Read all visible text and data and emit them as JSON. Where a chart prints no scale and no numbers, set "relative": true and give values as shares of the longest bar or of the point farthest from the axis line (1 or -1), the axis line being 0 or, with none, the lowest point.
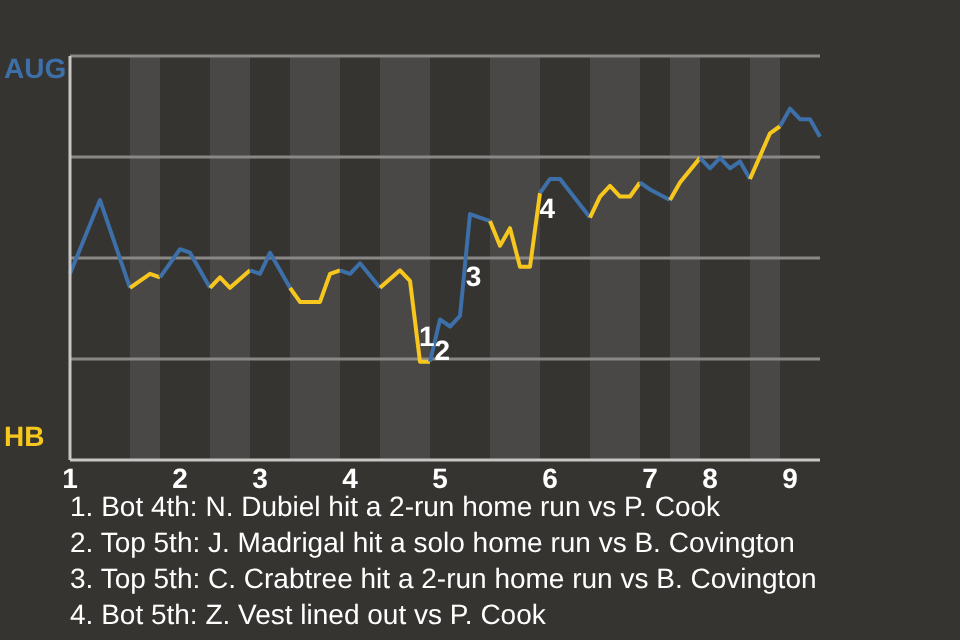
{
  "chart_data": {
    "type": "line",
    "relative": true,
    "categories": [
      "1",
      null,
      null,
      null,
      null,
      null,
      null,
      null,
      null,
      null,
      null,
      "2",
      null,
      null,
      null,
      null,
      null,
      null,
      null,
      "3",
      null,
      null,
      null,
      null,
      null,
      null,
      null,
      null,
      "4",
      null,
      null,
      null,
      null,
      null,
      null,
      null,
      null,
      "5",
      null,
      null,
      null,
      null,
      null,
      null,
      null,
      null,
      null,
      null,
      "6",
      null,
      null,
      null,
      null,
      null,
      null,
      null,
      null,
      null,
      "7",
      null,
      null,
      null,
      null,
      null,
      "8",
      null,
      null,
      null,
      null,
      null,
      null,
      null,
      "9",
      null,
      null,
      null
    ],
    "grid": "y",
    "line_style": "solid",
    "series": [
      {
        "color": "#3d6fa8",
        "values": [
          0.53,
          null,
          null,
          0.74,
          null,
          null,
          0.49,
          null,
          null,
          null,
          null,
          null,
          null,
          null,
          null,
          null,
          null,
          null,
          null,
          null,
          null,
          null,
          null,
          null,
          null,
          null,
          null,
          null,
          null,
          null,
          null,
          null,
          null,
          null,
          null,
          null,
          null,
          null,
          null,
          null,
          null,
          null,
          null,
          null,
          null,
          null,
          null,
          null,
          null,
          null,
          null,
          null,
          null,
          null,
          null,
          null,
          null,
          null,
          null,
          null,
          null,
          null,
          null,
          null,
          null,
          null,
          null,
          null,
          null,
          null,
          null,
          null,
          null,
          null,
          null,
          null
        ]
      },
      {
        "color": "#f7c71e",
        "values": [
          null,
          null,
          null,
          null,
          null,
          null,
          0.49,
          null,
          0.53,
          0.52,
          null,
          null,
          null,
          null,
          null,
          null,
          null,
          null,
          null,
          null,
          null,
          null,
          null,
          null,
          null,
          null,
          null,
          null,
          null,
          null,
          null,
          null,
          null,
          null,
          null,
          null,
          null,
          null,
          null,
          null,
          null,
          null,
          null,
          null,
          null,
          null,
          null,
          null,
          null,
          null,
          null,
          null,
          null,
          null,
          null,
          null,
          null,
          null,
          null,
          null,
          null,
          null,
          null,
          null,
          null,
          null,
          null,
          null,
          null,
          null,
          null,
          null,
          null,
          null,
          null,
          null
        ]
      },
      {
        "color": "#3d6fa8",
        "values": [
          null,
          null,
          null,
          null,
          null,
          null,
          null,
          null,
          null,
          0.52,
          null,
          0.6,
          0.59,
          null,
          0.49,
          null,
          null,
          null,
          null,
          null,
          null,
          null,
          null,
          null,
          null,
          null,
          null,
          null,
          null,
          null,
          null,
          null,
          null,
          null,
          null,
          null,
          null,
          null,
          null,
          null,
          null,
          null,
          null,
          null,
          null,
          null,
          null,
          null,
          null,
          null,
          null,
          null,
          null,
          null,
          null,
          null,
          null,
          null,
          null,
          null,
          null,
          null,
          null,
          null,
          null,
          null,
          null,
          null,
          null,
          null,
          null,
          null,
          null,
          null,
          null,
          null
        ]
      },
      {
        "color": "#f7c71e",
        "values": [
          null,
          null,
          null,
          null,
          null,
          null,
          null,
          null,
          null,
          null,
          null,
          null,
          null,
          null,
          0.49,
          0.52,
          0.49,
          null,
          0.54,
          null,
          null,
          null,
          null,
          null,
          null,
          null,
          null,
          null,
          null,
          null,
          null,
          null,
          null,
          null,
          null,
          null,
          null,
          null,
          null,
          null,
          null,
          null,
          null,
          null,
          null,
          null,
          null,
          null,
          null,
          null,
          null,
          null,
          null,
          null,
          null,
          null,
          null,
          null,
          null,
          null,
          null,
          null,
          null,
          null,
          null,
          null,
          null,
          null,
          null,
          null,
          null,
          null,
          null,
          null,
          null,
          null
        ]
      },
      {
        "color": "#3d6fa8",
        "values": [
          null,
          null,
          null,
          null,
          null,
          null,
          null,
          null,
          null,
          null,
          null,
          null,
          null,
          null,
          null,
          null,
          null,
          null,
          0.54,
          0.53,
          0.59,
          null,
          0.49,
          null,
          null,
          null,
          null,
          null,
          null,
          null,
          null,
          null,
          null,
          null,
          null,
          null,
          null,
          null,
          null,
          null,
          null,
          null,
          null,
          null,
          null,
          null,
          null,
          null,
          null,
          null,
          null,
          null,
          null,
          null,
          null,
          null,
          null,
          null,
          null,
          null,
          null,
          null,
          null,
          null,
          null,
          null,
          null,
          null,
          null,
          null,
          null,
          null,
          null,
          null,
          null,
          null
        ]
      },
      {
        "color": "#f7c71e",
        "values": [
          null,
          null,
          null,
          null,
          null,
          null,
          null,
          null,
          null,
          null,
          null,
          null,
          null,
          null,
          null,
          null,
          null,
          null,
          null,
          null,
          null,
          null,
          0.49,
          0.45,
          null,
          0.45,
          0.53,
          0.54,
          null,
          null,
          null,
          null,
          null,
          null,
          null,
          null,
          null,
          null,
          null,
          null,
          null,
          null,
          null,
          null,
          null,
          null,
          null,
          null,
          null,
          null,
          null,
          null,
          null,
          null,
          null,
          null,
          null,
          null,
          null,
          null,
          null,
          null,
          null,
          null,
          null,
          null,
          null,
          null,
          null,
          null,
          null,
          null,
          null,
          null,
          null,
          null
        ]
      },
      {
        "color": "#3d6fa8",
        "values": [
          null,
          null,
          null,
          null,
          null,
          null,
          null,
          null,
          null,
          null,
          null,
          null,
          null,
          null,
          null,
          null,
          null,
          null,
          null,
          null,
          null,
          null,
          null,
          null,
          null,
          null,
          null,
          0.54,
          0.53,
          0.56,
          null,
          0.49,
          null,
          null,
          null,
          null,
          null,
          null,
          null,
          null,
          null,
          null,
          null,
          null,
          null,
          null,
          null,
          null,
          null,
          null,
          null,
          null,
          null,
          null,
          null,
          null,
          null,
          null,
          null,
          null,
          null,
          null,
          null,
          null,
          null,
          null,
          null,
          null,
          null,
          null,
          null,
          null,
          null,
          null,
          null,
          null
        ]
      },
      {
        "color": "#f7c71e",
        "values": [
          null,
          null,
          null,
          null,
          null,
          null,
          null,
          null,
          null,
          null,
          null,
          null,
          null,
          null,
          null,
          null,
          null,
          null,
          null,
          null,
          null,
          null,
          null,
          null,
          null,
          null,
          null,
          null,
          null,
          null,
          null,
          0.49,
          null,
          0.54,
          0.51,
          0.28,
          0.28,
          null,
          null,
          null,
          null,
          null,
          null,
          null,
          null,
          null,
          null,
          null,
          null,
          null,
          null,
          null,
          null,
          null,
          null,
          null,
          null,
          null,
          null,
          null,
          null,
          null,
          null,
          null,
          null,
          null,
          null,
          null,
          null,
          null,
          null,
          null,
          null,
          null,
          null,
          null
        ],
        "name": null
      },
      {
        "color": "#3d6fa8",
        "values": [
          null,
          null,
          null,
          null,
          null,
          null,
          null,
          null,
          null,
          null,
          null,
          null,
          null,
          null,
          null,
          null,
          null,
          null,
          null,
          null,
          null,
          null,
          null,
          null,
          null,
          null,
          null,
          null,
          null,
          null,
          null,
          null,
          null,
          null,
          null,
          null,
          0.28,
          0.4,
          0.38,
          0.41,
          0.7,
          0.69,
          0.68,
          null,
          null,
          null,
          null,
          null,
          null,
          null,
          null,
          null,
          null,
          null,
          null,
          null,
          null,
          null,
          null,
          null,
          null,
          null,
          null,
          null,
          null,
          null,
          null,
          null,
          null,
          null,
          null,
          null,
          null,
          null,
          null,
          null
        ],
        "name": null
      },
      {
        "color": "#f7c71e",
        "values": [
          null,
          null,
          null,
          null,
          null,
          null,
          null,
          null,
          null,
          null,
          null,
          null,
          null,
          null,
          null,
          null,
          null,
          null,
          null,
          null,
          null,
          null,
          null,
          null,
          null,
          null,
          null,
          null,
          null,
          null,
          null,
          null,
          null,
          null,
          null,
          null,
          null,
          null,
          null,
          null,
          null,
          null,
          0.68,
          0.61,
          0.66,
          0.55,
          0.55,
          0.76,
          null,
          null,
          null,
          null,
          null,
          null,
          null,
          null,
          null,
          null,
          null,
          null,
          null,
          null,
          null,
          null,
          null,
          null,
          null,
          null,
          null,
          null,
          null,
          null,
          null,
          null,
          null,
          null
        ],
        "name": null
      },
      {
        "color": "#3d6fa8",
        "values": [
          null,
          null,
          null,
          null,
          null,
          null,
          null,
          null,
          null,
          null,
          null,
          null,
          null,
          null,
          null,
          null,
          null,
          null,
          null,
          null,
          null,
          null,
          null,
          null,
          null,
          null,
          null,
          null,
          null,
          null,
          null,
          null,
          null,
          null,
          null,
          null,
          null,
          null,
          null,
          null,
          null,
          null,
          null,
          null,
          null,
          null,
          null,
          0.76,
          0.8,
          0.8,
          null,
          null,
          0.69,
          null,
          null,
          null,
          null,
          null,
          null,
          null,
          null,
          null,
          null,
          null,
          null,
          null,
          null,
          null,
          null,
          null,
          null,
          null,
          null,
          null,
          null,
          null
        ]
      },
      {
        "color": "#f7c71e",
        "values": [
          null,
          null,
          null,
          null,
          null,
          null,
          null,
          null,
          null,
          null,
          null,
          null,
          null,
          null,
          null,
          null,
          null,
          null,
          null,
          null,
          null,
          null,
          null,
          null,
          null,
          null,
          null,
          null,
          null,
          null,
          null,
          null,
          null,
          null,
          null,
          null,
          null,
          null,
          null,
          null,
          null,
          null,
          null,
          null,
          null,
          null,
          null,
          null,
          null,
          null,
          null,
          null,
          0.69,
          0.75,
          0.78,
          0.75,
          0.75,
          0.79,
          null,
          null,
          null,
          null,
          null,
          null,
          null,
          null,
          null,
          null,
          null,
          null,
          null,
          null,
          null,
          null,
          null,
          null
        ]
      },
      {
        "color": "#3d6fa8",
        "values": [
          null,
          null,
          null,
          null,
          null,
          null,
          null,
          null,
          null,
          null,
          null,
          null,
          null,
          null,
          null,
          null,
          null,
          null,
          null,
          null,
          null,
          null,
          null,
          null,
          null,
          null,
          null,
          null,
          null,
          null,
          null,
          null,
          null,
          null,
          null,
          null,
          null,
          null,
          null,
          null,
          null,
          null,
          null,
          null,
          null,
          null,
          null,
          null,
          null,
          null,
          null,
          null,
          null,
          null,
          null,
          null,
          null,
          0.79,
          0.77,
          null,
          0.74,
          null,
          null,
          null,
          null,
          null,
          null,
          null,
          null,
          null,
          null,
          null,
          null,
          null,
          null,
          null
        ]
      },
      {
        "color": "#f7c71e",
        "values": [
          null,
          null,
          null,
          null,
          null,
          null,
          null,
          null,
          null,
          null,
          null,
          null,
          null,
          null,
          null,
          null,
          null,
          null,
          null,
          null,
          null,
          null,
          null,
          null,
          null,
          null,
          null,
          null,
          null,
          null,
          null,
          null,
          null,
          null,
          null,
          null,
          null,
          null,
          null,
          null,
          null,
          null,
          null,
          null,
          null,
          null,
          null,
          null,
          null,
          null,
          null,
          null,
          null,
          null,
          null,
          null,
          null,
          null,
          null,
          null,
          0.74,
          0.79,
          null,
          0.86,
          null,
          null,
          null,
          null,
          null,
          null,
          null,
          null,
          null,
          null,
          null,
          null
        ]
      },
      {
        "color": "#3d6fa8",
        "values": [
          null,
          null,
          null,
          null,
          null,
          null,
          null,
          null,
          null,
          null,
          null,
          null,
          null,
          null,
          null,
          null,
          null,
          null,
          null,
          null,
          null,
          null,
          null,
          null,
          null,
          null,
          null,
          null,
          null,
          null,
          null,
          null,
          null,
          null,
          null,
          null,
          null,
          null,
          null,
          null,
          null,
          null,
          null,
          null,
          null,
          null,
          null,
          null,
          null,
          null,
          null,
          null,
          null,
          null,
          null,
          null,
          null,
          null,
          null,
          null,
          null,
          null,
          null,
          0.86,
          0.83,
          0.86,
          0.83,
          0.85,
          0.8,
          null,
          null,
          null,
          null,
          null,
          null,
          null
        ]
      },
      {
        "color": "#f7c71e",
        "values": [
          null,
          null,
          null,
          null,
          null,
          null,
          null,
          null,
          null,
          null,
          null,
          null,
          null,
          null,
          null,
          null,
          null,
          null,
          null,
          null,
          null,
          null,
          null,
          null,
          null,
          null,
          null,
          null,
          null,
          null,
          null,
          null,
          null,
          null,
          null,
          null,
          null,
          null,
          null,
          null,
          null,
          null,
          null,
          null,
          null,
          null,
          null,
          null,
          null,
          null,
          null,
          null,
          null,
          null,
          null,
          null,
          null,
          null,
          null,
          null,
          null,
          null,
          null,
          null,
          null,
          null,
          null,
          null,
          0.8,
          null,
          0.93,
          0.95,
          null,
          null,
          null,
          null
        ]
      },
      {
        "color": "#3d6fa8",
        "values": [
          null,
          null,
          null,
          null,
          null,
          null,
          null,
          null,
          null,
          null,
          null,
          null,
          null,
          null,
          null,
          null,
          null,
          null,
          null,
          null,
          null,
          null,
          null,
          null,
          null,
          null,
          null,
          null,
          null,
          null,
          null,
          null,
          null,
          null,
          null,
          null,
          null,
          null,
          null,
          null,
          null,
          null,
          null,
          null,
          null,
          null,
          null,
          null,
          null,
          null,
          null,
          null,
          null,
          null,
          null,
          null,
          null,
          null,
          null,
          null,
          null,
          null,
          null,
          null,
          null,
          null,
          null,
          null,
          null,
          null,
          null,
          0.95,
          1,
          0.97,
          0.97,
          0.92
        ]
      }
    ],
    "annotations": [
      "AUG",
      "HB",
      {
        "text": "1",
        "y": 0.35
      },
      {
        "text": "2",
        "y": 0.31
      },
      {
        "text": "3",
        "y": 0.52
      },
      {
        "text": "4",
        "y": 0.71
      },
      "1. Bot 4th: N. Dubiel hit a 2-run home run vs P. Cook",
      "2. Top 5th: J. Madrigal hit a solo home run vs B. Covington",
      "3. Top 5th: C. Crabtree hit a 2-run home run vs B. Covington",
      "4. Bot 5th: Z. Vest lined out vs P. Cook"
    ]
  }
}
